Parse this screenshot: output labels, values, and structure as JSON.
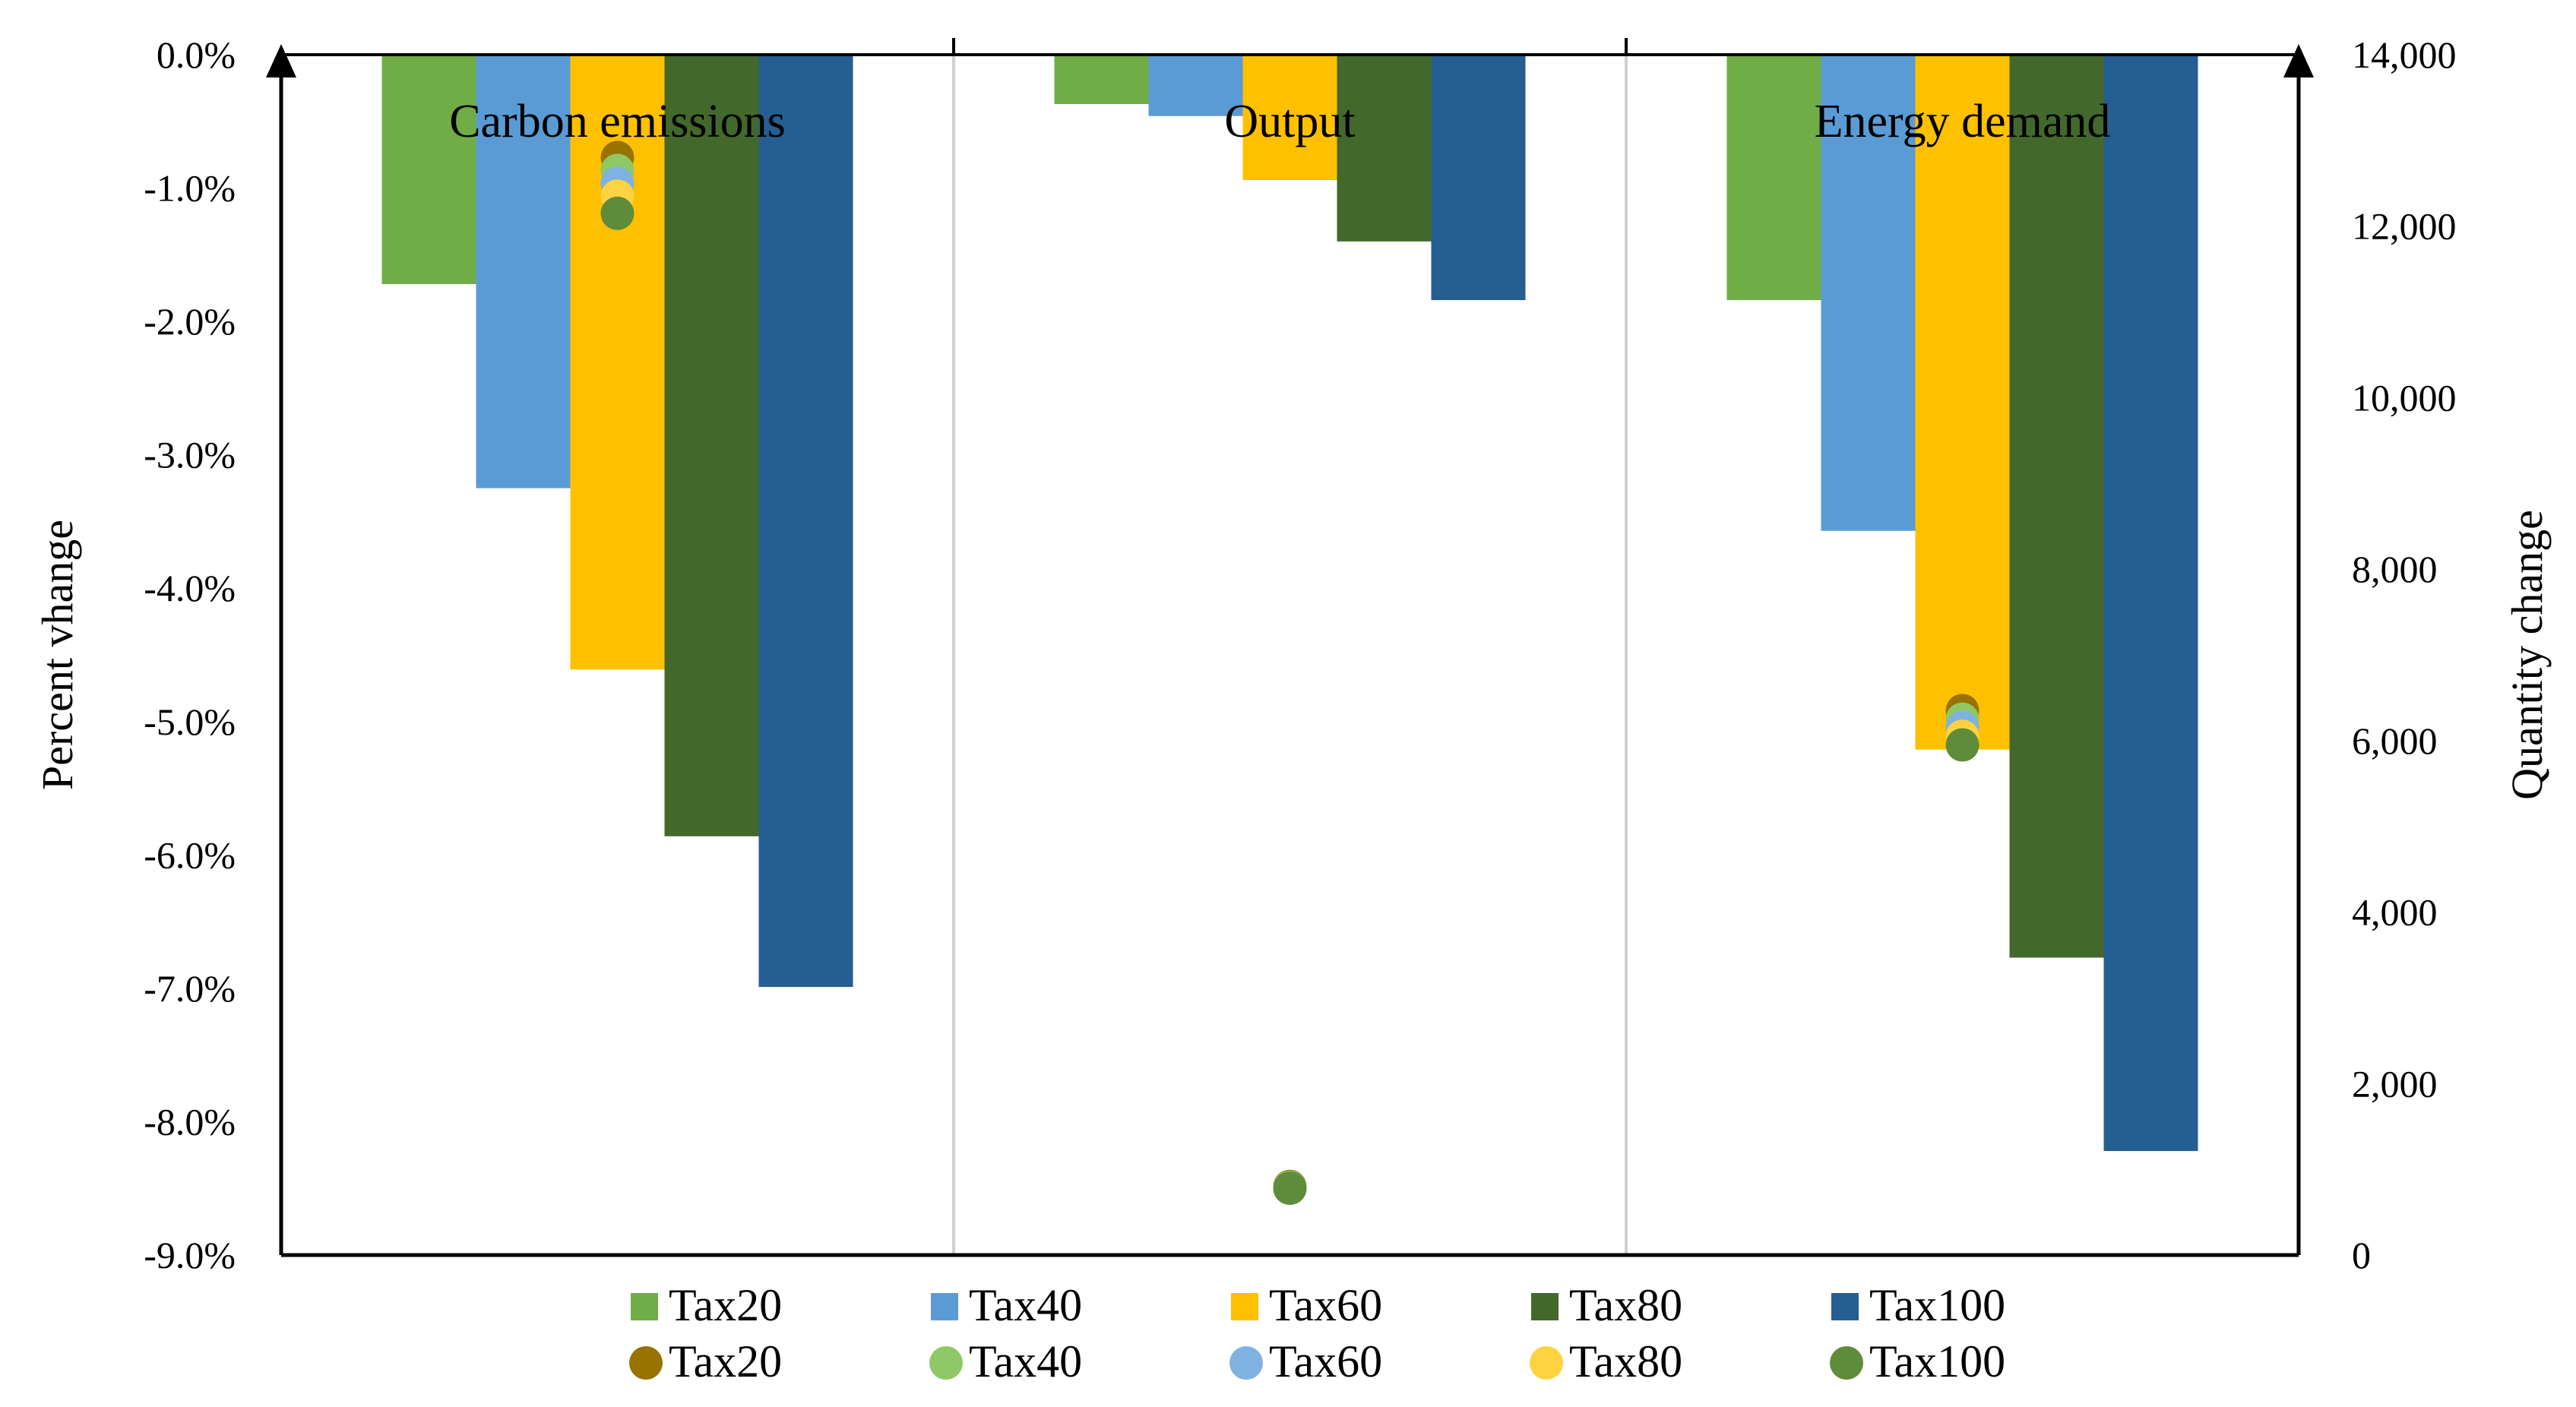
{
  "chart_data": {
    "type": "bar",
    "categories": [
      "Carbon emissions",
      "Output",
      "Energy demand"
    ],
    "ylabel": "Percent vhange",
    "y2label": "Quantity change",
    "ylim": [
      -0.09,
      0
    ],
    "y2lim": [
      0,
      14000
    ],
    "yticks": [
      "0.0%",
      "-1.0%",
      "-2.0%",
      "-3.0%",
      "-4.0%",
      "-5.0%",
      "-6.0%",
      "-7.0%",
      "-8.0%",
      "-9.0%"
    ],
    "y2ticks": [
      "0",
      "2,000",
      "4,000",
      "6,000",
      "8,000",
      "10,000",
      "12,000",
      "14,000"
    ],
    "series": [
      {
        "name": "Tax20",
        "kind": "bar",
        "axis": "left",
        "color": "#70AD47",
        "values": [
          -0.0172,
          -0.0037,
          -0.0184
        ]
      },
      {
        "name": "Tax40",
        "kind": "bar",
        "axis": "left",
        "color": "#5B9BD5",
        "values": [
          -0.0325,
          -0.0046,
          -0.0357
        ]
      },
      {
        "name": "Tax60",
        "kind": "bar",
        "axis": "left",
        "color": "#FFC000",
        "values": [
          -0.0461,
          -0.0094,
          -0.0521
        ]
      },
      {
        "name": "Tax80",
        "kind": "bar",
        "axis": "left",
        "color": "#43682B",
        "values": [
          -0.0586,
          -0.014,
          -0.0677
        ]
      },
      {
        "name": "Tax100",
        "kind": "bar",
        "axis": "left",
        "color": "#255E91",
        "values": [
          -0.0699,
          -0.0184,
          -0.0822
        ]
      },
      {
        "name": "Tax20",
        "kind": "scatter",
        "axis": "right",
        "color": "#997300",
        "values": [
          12800,
          800,
          6350
        ]
      },
      {
        "name": "Tax40",
        "kind": "scatter",
        "axis": "right",
        "color": "#8FC866",
        "values": [
          12650,
          790,
          6250
        ]
      },
      {
        "name": "Tax60",
        "kind": "scatter",
        "axis": "right",
        "color": "#7FB2E0",
        "values": [
          12500,
          780,
          6150
        ]
      },
      {
        "name": "Tax80",
        "kind": "scatter",
        "axis": "right",
        "color": "#FFD23F",
        "values": [
          12350,
          780,
          6050
        ]
      },
      {
        "name": "Tax100",
        "kind": "scatter",
        "axis": "right",
        "color": "#5E8C3A",
        "values": [
          12150,
          780,
          5950
        ]
      }
    ]
  }
}
